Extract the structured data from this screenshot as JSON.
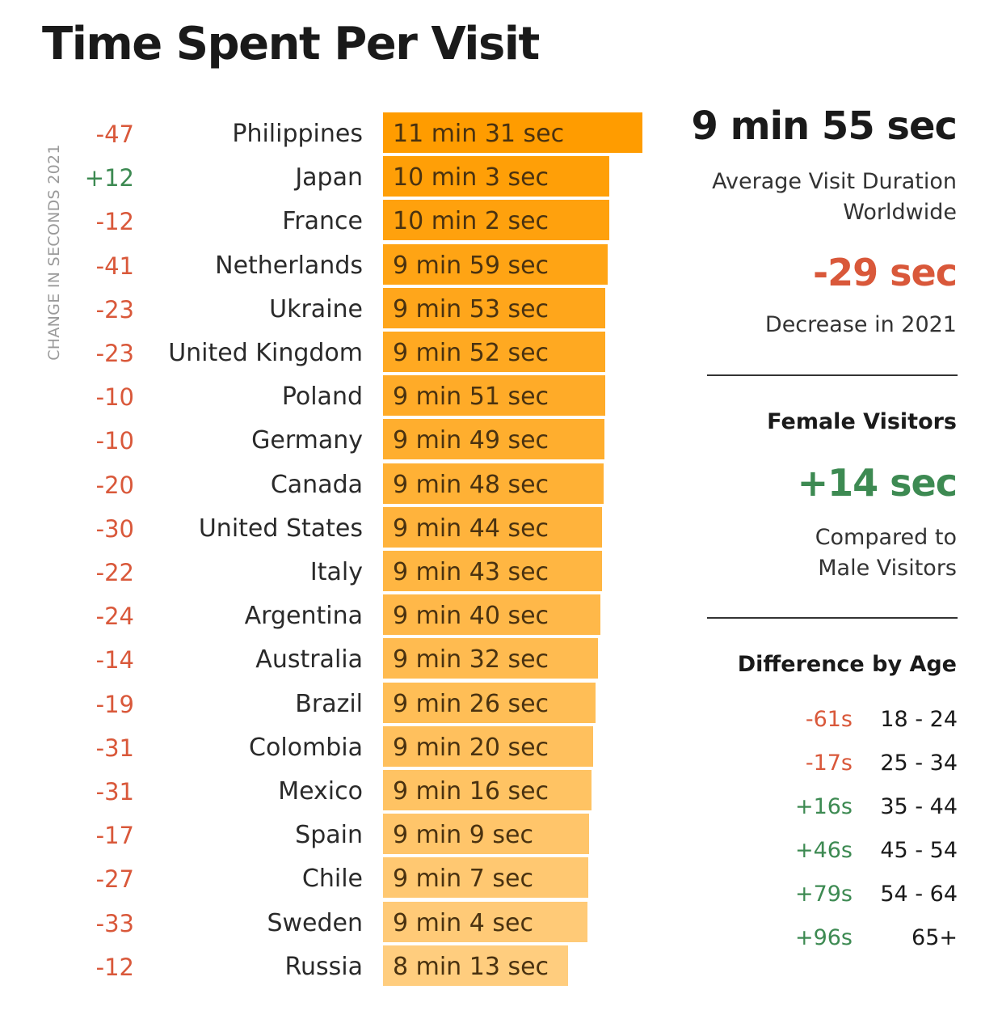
{
  "title": "Time Spent Per Visit",
  "colors": {
    "negative": "#d9583a",
    "positive": "#3d8a52",
    "bar_top": "#ff9c00",
    "bar_bottom": "#ffcd7e"
  },
  "chart_data": {
    "type": "bar",
    "orientation": "horizontal",
    "title": "Time Spent Per Visit",
    "change_axis_label": "CHANGE IN SECONDS 2021",
    "categories": [
      "Philippines",
      "Japan",
      "France",
      "Netherlands",
      "Ukraine",
      "United Kingdom",
      "Poland",
      "Germany",
      "Canada",
      "United States",
      "Italy",
      "Argentina",
      "Australia",
      "Brazil",
      "Colombia",
      "Mexico",
      "Spain",
      "Chile",
      "Sweden",
      "Russia"
    ],
    "values_seconds": [
      691,
      603,
      602,
      599,
      593,
      592,
      591,
      589,
      588,
      584,
      583,
      580,
      572,
      566,
      560,
      556,
      549,
      547,
      544,
      493
    ],
    "value_labels": [
      "11 min 31 sec",
      "10 min 3 sec",
      "10 min 2 sec",
      "9 min 59 sec",
      "9 min 53 sec",
      "9 min 52 sec",
      "9 min 51 sec",
      "9 min 49 sec",
      "9 min 48 sec",
      "9 min 44 sec",
      "9 min 43 sec",
      "9 min 40 sec",
      "9 min 32 sec",
      "9 min 26 sec",
      "9 min 20 sec",
      "9 min 16 sec",
      "9 min 9 sec",
      "9 min 7 sec",
      "9 min 4 sec",
      "8 min 13 sec"
    ],
    "change_seconds": [
      -47,
      12,
      -12,
      -41,
      -23,
      -23,
      -10,
      -10,
      -20,
      -30,
      -22,
      -24,
      -14,
      -19,
      -31,
      -31,
      -17,
      -27,
      -33,
      -12
    ],
    "change_labels": [
      "-47",
      "+12",
      "-12",
      "-41",
      "-23",
      "-23",
      "-10",
      "-10",
      "-20",
      "-30",
      "-22",
      "-24",
      "-14",
      "-19",
      "-31",
      "-31",
      "-17",
      "-27",
      "-33",
      "-12"
    ]
  },
  "summary": {
    "average_value": "9 min 55 sec",
    "average_caption_line1": "Average Visit Duration",
    "average_caption_line2": "Worldwide",
    "decrease_value": "-29 sec",
    "decrease_caption": "Decrease in 2021",
    "female_heading": "Female Visitors",
    "female_value": "+14 sec",
    "female_caption_line1": "Compared to",
    "female_caption_line2": "Male Visitors",
    "age_heading": "Difference by Age",
    "age_rows": [
      {
        "diff": "-61s",
        "range": "18 - 24",
        "sign": "neg"
      },
      {
        "diff": "-17s",
        "range": "25 - 34",
        "sign": "neg"
      },
      {
        "diff": "+16s",
        "range": "35 - 44",
        "sign": "pos"
      },
      {
        "diff": "+46s",
        "range": "45 - 54",
        "sign": "pos"
      },
      {
        "diff": "+79s",
        "range": "54 - 64",
        "sign": "pos"
      },
      {
        "diff": "+96s",
        "range": "65+",
        "sign": "pos"
      }
    ]
  }
}
